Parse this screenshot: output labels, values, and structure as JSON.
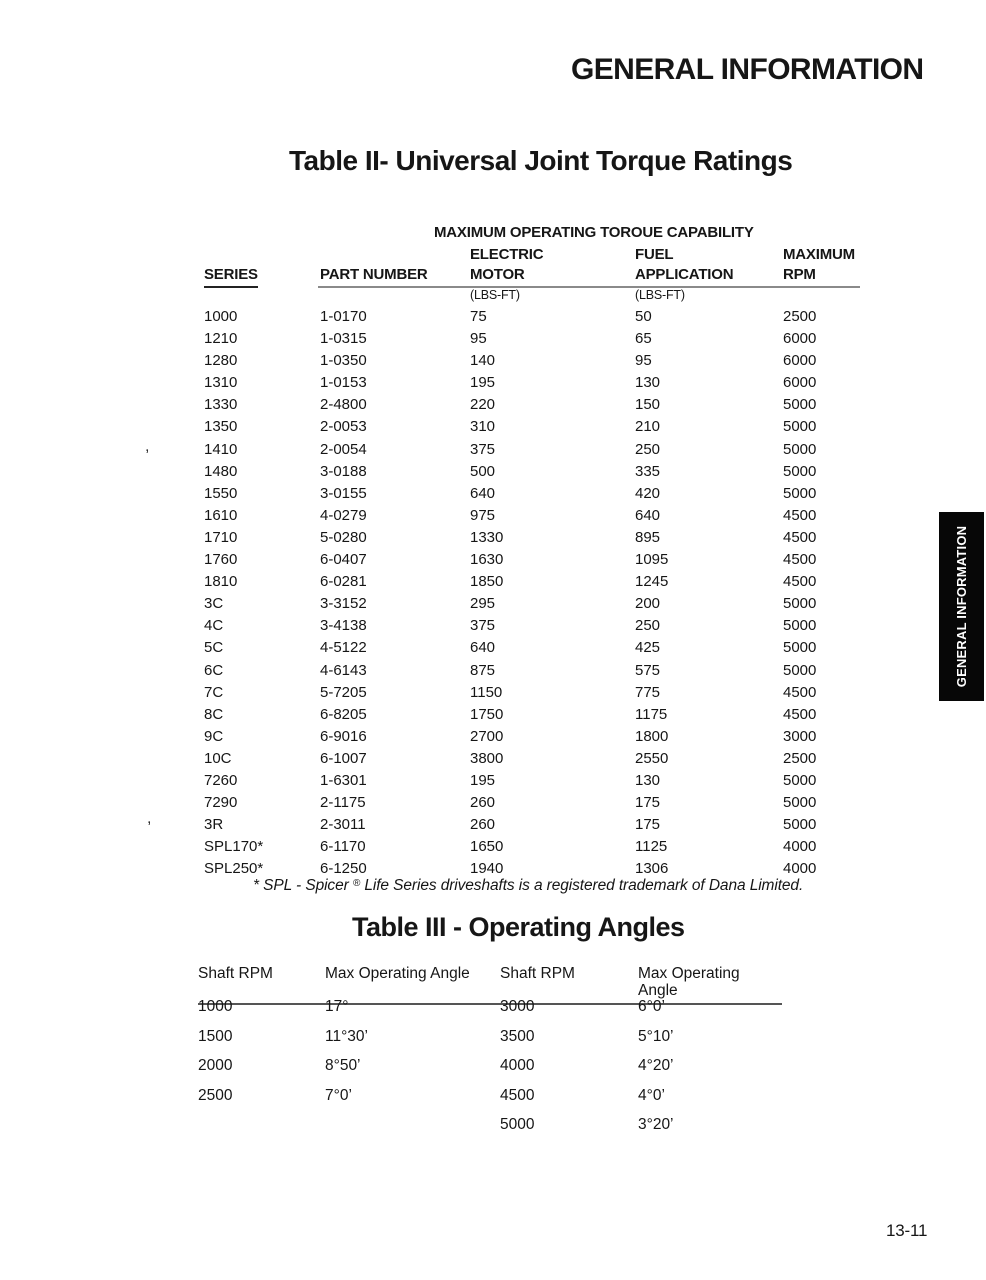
{
  "page": {
    "header_title": "GENERAL INFORMATION",
    "side_tab": "GENERAL INFORMATION",
    "page_number": "13-11"
  },
  "table2": {
    "title": "Table II- Universal Joint Torque Ratings",
    "capability_header": "MAXIMUM OPERATING TOROUE CAPABILITY",
    "columns": {
      "series": "SERIES",
      "part_number": "PART NUMBER",
      "electric_line1": "ELECTRIC",
      "electric_line2": "MOTOR",
      "fuel_line1": "FUEL",
      "fuel_line2": "APPLICATION",
      "max_line1": "MAXIMUM",
      "max_line2": "RPM",
      "units": "(LBS-FT)"
    },
    "rows": [
      {
        "series": "1000",
        "part": "1-0170",
        "electric": "75",
        "fuel": "50",
        "rpm": "2500"
      },
      {
        "series": "1210",
        "part": "1-0315",
        "electric": "95",
        "fuel": "65",
        "rpm": "6000"
      },
      {
        "series": "1280",
        "part": "1-0350",
        "electric": "140",
        "fuel": "95",
        "rpm": "6000"
      },
      {
        "series": "1310",
        "part": "1-0153",
        "electric": "195",
        "fuel": "130",
        "rpm": "6000"
      },
      {
        "series": "1330",
        "part": "2-4800",
        "electric": "220",
        "fuel": "150",
        "rpm": "5000"
      },
      {
        "series": "1350",
        "part": "2-0053",
        "electric": "310",
        "fuel": "210",
        "rpm": "5000"
      },
      {
        "series": "1410",
        "part": "2-0054",
        "electric": "375",
        "fuel": "250",
        "rpm": "5000"
      },
      {
        "series": "1480",
        "part": "3-0188",
        "electric": "500",
        "fuel": "335",
        "rpm": "5000"
      },
      {
        "series": "1550",
        "part": "3-0155",
        "electric": "640",
        "fuel": "420",
        "rpm": "5000"
      },
      {
        "series": "1610",
        "part": "4-0279",
        "electric": "975",
        "fuel": "640",
        "rpm": "4500"
      },
      {
        "series": "1710",
        "part": "5-0280",
        "electric": "1330",
        "fuel": "895",
        "rpm": "4500"
      },
      {
        "series": "1760",
        "part": "6-0407",
        "electric": "1630",
        "fuel": "1095",
        "rpm": "4500"
      },
      {
        "series": "1810",
        "part": "6-0281",
        "electric": "1850",
        "fuel": "1245",
        "rpm": "4500"
      },
      {
        "series": "3C",
        "part": "3-3152",
        "electric": "295",
        "fuel": "200",
        "rpm": "5000"
      },
      {
        "series": "4C",
        "part": "3-4138",
        "electric": "375",
        "fuel": "250",
        "rpm": "5000"
      },
      {
        "series": "5C",
        "part": "4-5122",
        "electric": "640",
        "fuel": "425",
        "rpm": "5000"
      },
      {
        "series": "6C",
        "part": "4-6143",
        "electric": "875",
        "fuel": "575",
        "rpm": "5000"
      },
      {
        "series": "7C",
        "part": "5-7205",
        "electric": "1150",
        "fuel": "775",
        "rpm": "4500"
      },
      {
        "series": "8C",
        "part": "6-8205",
        "electric": "1750",
        "fuel": "1175",
        "rpm": "4500"
      },
      {
        "series": "9C",
        "part": "6-9016",
        "electric": "2700",
        "fuel": "1800",
        "rpm": "3000"
      },
      {
        "series": "10C",
        "part": "6-1007",
        "electric": "3800",
        "fuel": "2550",
        "rpm": "2500"
      },
      {
        "series": "7260",
        "part": "1-6301",
        "electric": "195",
        "fuel": "130",
        "rpm": "5000"
      },
      {
        "series": "7290",
        "part": "2-1175",
        "electric": "260",
        "fuel": "175",
        "rpm": "5000"
      },
      {
        "series": "3R",
        "part": "2-3011",
        "electric": "260",
        "fuel": "175",
        "rpm": "5000"
      },
      {
        "series": "SPL170*",
        "part": "6-1170",
        "electric": "1650",
        "fuel": "1125",
        "rpm": "4000"
      },
      {
        "series": "SPL250*",
        "part": "6-1250",
        "electric": "1940",
        "fuel": "1306",
        "rpm": "4000"
      }
    ],
    "footnote_pre": "* SPL - Spicer ",
    "footnote_reg": "®",
    "footnote_post": " Life Series driveshafts is a registered trademark of Dana Limited."
  },
  "table3": {
    "title": "Table III - Operating Angles",
    "headers": [
      "Shaft RPM",
      "Max Operating Angle",
      "Shaft RPM",
      "Max Operating Angle"
    ],
    "rows": [
      {
        "rpm1": "1000",
        "angle1": "17°",
        "rpm2": "3000",
        "angle2": "6°0’"
      },
      {
        "rpm1": "1500",
        "angle1": "11°30’",
        "rpm2": "3500",
        "angle2": "5°10’"
      },
      {
        "rpm1": "2000",
        "angle1": "8°50’",
        "rpm2": "4000",
        "angle2": "4°20’"
      },
      {
        "rpm1": "2500",
        "angle1": "7°0’",
        "rpm2": "4500",
        "angle2": "4°0’"
      },
      {
        "rpm1": "",
        "angle1": "",
        "rpm2": "5000",
        "angle2": "3°20’"
      }
    ]
  },
  "artifacts": {
    "mark1": ",",
    "mark2": ","
  }
}
